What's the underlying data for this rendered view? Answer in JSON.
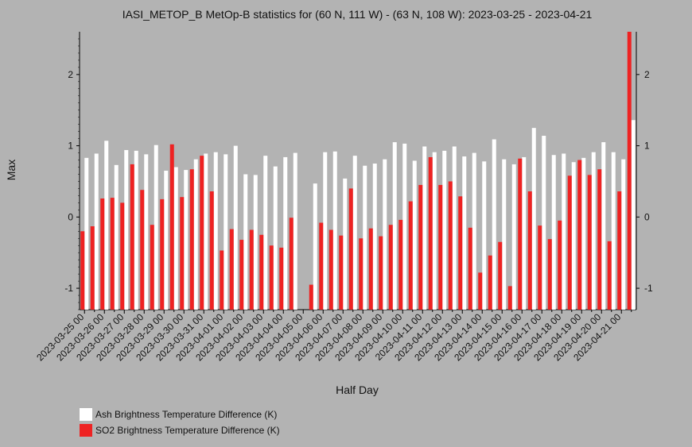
{
  "chart_data": {
    "type": "bar",
    "title": "IASI_METOP_B MetOp-B statistics for (60 N, 111 W) - (63 N, 108 W): 2023-03-25 - 2023-04-21",
    "xlabel": "Half Day",
    "ylabel": "Max",
    "ylim": [
      -1.3,
      2.6
    ],
    "yticks": [
      -1,
      0,
      1,
      2
    ],
    "date_labels": [
      "2023-03-25 00",
      "2023-03-26 00",
      "2023-03-27 00",
      "2023-03-28 00",
      "2023-03-29 00",
      "2023-03-30 00",
      "2023-03-31 00",
      "2023-04-01 00",
      "2023-04-02 00",
      "2023-04-03 00",
      "2023-04-04 00",
      "2023-04-05 00",
      "2023-04-06 00",
      "2023-04-07 00",
      "2023-04-08 00",
      "2023-04-09 00",
      "2023-04-10 00",
      "2023-04-11 00",
      "2023-04-12 00",
      "2023-04-13 00",
      "2023-04-14 00",
      "2023-04-15 00",
      "2023-04-16 00",
      "2023-04-17 00",
      "2023-04-18 00",
      "2023-04-19 00",
      "2023-04-20 00",
      "2023-04-21 00"
    ],
    "categories": [
      "2023-03-25 00",
      "2023-03-25 12",
      "2023-03-26 00",
      "2023-03-26 12",
      "2023-03-27 00",
      "2023-03-27 12",
      "2023-03-28 00",
      "2023-03-28 12",
      "2023-03-29 00",
      "2023-03-29 12",
      "2023-03-30 00",
      "2023-03-30 12",
      "2023-03-31 00",
      "2023-03-31 12",
      "2023-04-01 00",
      "2023-04-01 12",
      "2023-04-02 00",
      "2023-04-02 12",
      "2023-04-03 00",
      "2023-04-03 12",
      "2023-04-04 00",
      "2023-04-04 12",
      "2023-04-05 00",
      "2023-04-05 12",
      "2023-04-06 00",
      "2023-04-06 12",
      "2023-04-07 00",
      "2023-04-07 12",
      "2023-04-08 00",
      "2023-04-08 12",
      "2023-04-09 00",
      "2023-04-09 12",
      "2023-04-10 00",
      "2023-04-10 12",
      "2023-04-11 00",
      "2023-04-11 12",
      "2023-04-12 00",
      "2023-04-12 12",
      "2023-04-13 00",
      "2023-04-13 12",
      "2023-04-14 00",
      "2023-04-14 12",
      "2023-04-15 00",
      "2023-04-15 12",
      "2023-04-16 00",
      "2023-04-16 12",
      "2023-04-17 00",
      "2023-04-17 12",
      "2023-04-18 00",
      "2023-04-18 12",
      "2023-04-19 00",
      "2023-04-19 12",
      "2023-04-20 00",
      "2023-04-20 12",
      "2023-04-21 00",
      "2023-04-21 12"
    ],
    "series": [
      {
        "name": "Ash Brightness Temperature Difference (K)",
        "color": "#ffffff",
        "values": [
          0.83,
          0.89,
          1.07,
          0.73,
          0.94,
          0.93,
          0.88,
          1.01,
          0.65,
          0.7,
          0.66,
          0.81,
          0.89,
          0.91,
          0.88,
          1.0,
          0.6,
          0.59,
          0.86,
          0.71,
          0.84,
          0.9,
          null,
          0.47,
          0.91,
          0.92,
          0.54,
          0.86,
          0.72,
          0.75,
          0.81,
          1.05,
          1.03,
          0.79,
          0.99,
          0.91,
          0.93,
          0.99,
          0.85,
          0.9,
          0.78,
          1.09,
          0.81,
          0.74,
          0.84,
          1.25,
          1.14,
          0.87,
          0.89,
          0.77,
          0.83,
          0.91,
          1.05,
          0.91,
          0.81,
          1.36
        ]
      },
      {
        "name": "SO2 Brightness Temperature Difference (K)",
        "color": "#ee2222",
        "values": [
          -0.2,
          -0.13,
          0.26,
          0.27,
          0.2,
          0.74,
          0.38,
          -0.11,
          0.25,
          1.02,
          0.28,
          0.67,
          0.86,
          0.36,
          -0.47,
          -0.17,
          -0.32,
          -0.18,
          -0.25,
          -0.4,
          -0.43,
          -0.01,
          null,
          -0.95,
          -0.08,
          -0.18,
          -0.26,
          0.4,
          -0.3,
          -0.16,
          -0.27,
          -0.11,
          -0.04,
          0.22,
          0.45,
          0.84,
          0.45,
          0.5,
          0.29,
          -0.15,
          -0.78,
          -0.54,
          -0.35,
          -0.97,
          0.82,
          0.36,
          -0.12,
          -0.31,
          -0.05,
          0.58,
          0.8,
          0.59,
          0.67,
          -0.34,
          0.36,
          2.6
        ]
      }
    ],
    "legend_position": "bottom-left"
  }
}
